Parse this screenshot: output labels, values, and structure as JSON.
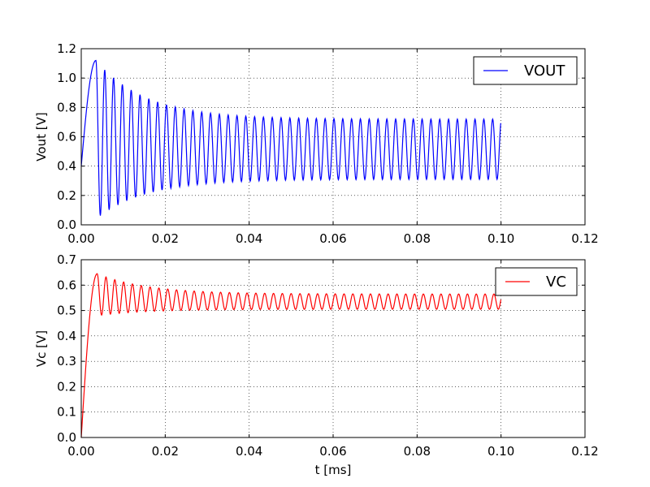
{
  "chart_data": [
    {
      "type": "line",
      "title": "",
      "xlabel": "",
      "ylabel": "Vout [V]",
      "xlim": [
        0.0,
        0.12
      ],
      "ylim": [
        0.0,
        1.2
      ],
      "xticks": [
        "0.00",
        "0.02",
        "0.04",
        "0.06",
        "0.08",
        "0.10",
        "0.12"
      ],
      "yticks": [
        "0.0",
        "0.2",
        "0.4",
        "0.6",
        "0.8",
        "1.0",
        "1.2"
      ],
      "grid": true,
      "legend_position": "top-right",
      "series": [
        {
          "name": "VOUT",
          "color": "#0000ff",
          "x_range": [
            0.0,
            0.1
          ],
          "start_value": 0.4,
          "first_peak": 1.12,
          "first_peak_time": 0.0035,
          "first_trough": 0.04,
          "period": 0.0021,
          "settled_max": 0.72,
          "settled_min": 0.31,
          "end_value": 0.69
        }
      ]
    },
    {
      "type": "line",
      "title": "",
      "xlabel": "t [ms]",
      "ylabel": "Vc [V]",
      "xlim": [
        0.0,
        0.12
      ],
      "ylim": [
        0.0,
        0.7
      ],
      "xticks": [
        "0.00",
        "0.02",
        "0.04",
        "0.06",
        "0.08",
        "0.10",
        "0.12"
      ],
      "yticks": [
        "0.0",
        "0.1",
        "0.2",
        "0.3",
        "0.4",
        "0.5",
        "0.6",
        "0.7"
      ],
      "grid": true,
      "legend_position": "top-right",
      "series": [
        {
          "name": "VC",
          "color": "#ff0000",
          "x_range": [
            0.0,
            0.1
          ],
          "start_value": 0.0,
          "first_peak": 0.645,
          "first_peak_time": 0.0038,
          "first_trough": 0.48,
          "period": 0.0021,
          "settled_max": 0.565,
          "settled_min": 0.505,
          "end_value": 0.52
        }
      ]
    }
  ]
}
